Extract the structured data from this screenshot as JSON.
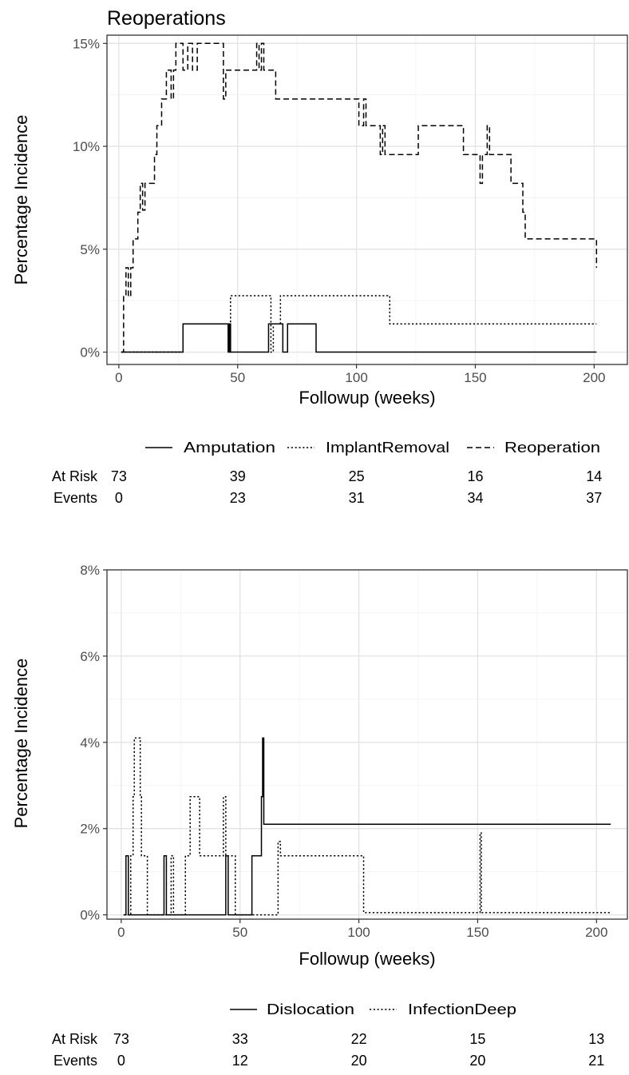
{
  "chart_data": [
    {
      "type": "line",
      "step": true,
      "title": "Reoperations",
      "xlabel": "Followup (weeks)",
      "ylabel": "Percentage Incidence",
      "xlim": [
        -5,
        214
      ],
      "ylim": [
        -0.6,
        15.4
      ],
      "x_ticks": [
        0,
        50,
        100,
        150,
        200
      ],
      "x_tick_labels": [
        "0",
        "50",
        "100",
        "150",
        "200"
      ],
      "y_ticks": [
        0,
        5,
        10,
        15
      ],
      "y_tick_labels": [
        "0%",
        "5%",
        "10%",
        "15%"
      ],
      "grid": true,
      "legend_position": "bottom",
      "series": [
        {
          "name": "Amputation",
          "dash": "solid",
          "points": [
            [
              1,
              0
            ],
            [
              27,
              0
            ],
            [
              27,
              1.37
            ],
            [
              46,
              1.37
            ],
            [
              46,
              0
            ],
            [
              46.5,
              0
            ],
            [
              46.5,
              1.37
            ],
            [
              47,
              1.37
            ],
            [
              47,
              0
            ],
            [
              63,
              0
            ],
            [
              63,
              1.37
            ],
            [
              69,
              1.37
            ],
            [
              69,
              0
            ],
            [
              71,
              0
            ],
            [
              71,
              1.37
            ],
            [
              83,
              1.37
            ],
            [
              83,
              0
            ],
            [
              201,
              0
            ]
          ]
        },
        {
          "name": "ImplantRemoval",
          "dash": "dotted",
          "points": [
            [
              1,
              0
            ],
            [
              27,
              0
            ],
            [
              27,
              1.37
            ],
            [
              46,
              1.37
            ],
            [
              46,
              0
            ],
            [
              47,
              0
            ],
            [
              47,
              2.74
            ],
            [
              64,
              2.74
            ],
            [
              64,
              0
            ],
            [
              65,
              0
            ],
            [
              65,
              1.37
            ],
            [
              68,
              1.37
            ],
            [
              68,
              2.74
            ],
            [
              114,
              2.74
            ],
            [
              114,
              1.37
            ],
            [
              201,
              1.37
            ]
          ]
        },
        {
          "name": "Reoperation",
          "dash": "dashed",
          "points": [
            [
              1,
              0
            ],
            [
              2,
              0
            ],
            [
              2,
              2.7
            ],
            [
              3,
              2.7
            ],
            [
              3,
              4.1
            ],
            [
              4,
              4.1
            ],
            [
              4,
              2.7
            ],
            [
              5,
              2.7
            ],
            [
              5,
              4.1
            ],
            [
              6,
              4.1
            ],
            [
              6,
              5.5
            ],
            [
              8,
              5.5
            ],
            [
              8,
              6.8
            ],
            [
              9,
              6.8
            ],
            [
              9,
              8.2
            ],
            [
              10,
              8.2
            ],
            [
              10,
              6.9
            ],
            [
              11,
              6.9
            ],
            [
              11,
              8.2
            ],
            [
              15,
              8.2
            ],
            [
              15,
              9.6
            ],
            [
              16,
              9.6
            ],
            [
              16,
              11.0
            ],
            [
              18,
              11.0
            ],
            [
              18,
              12.3
            ],
            [
              20,
              12.3
            ],
            [
              20,
              13.7
            ],
            [
              22,
              13.7
            ],
            [
              22,
              12.3
            ],
            [
              23,
              12.3
            ],
            [
              23,
              13.7
            ],
            [
              24,
              13.7
            ],
            [
              24,
              15.0
            ],
            [
              27,
              15.0
            ],
            [
              27,
              13.7
            ],
            [
              29,
              13.7
            ],
            [
              29,
              15.0
            ],
            [
              31,
              15.0
            ],
            [
              31,
              13.7
            ],
            [
              33,
              13.7
            ],
            [
              33,
              15.0
            ],
            [
              44,
              15.0
            ],
            [
              44,
              12.3
            ],
            [
              45,
              12.3
            ],
            [
              45,
              13.7
            ],
            [
              58,
              13.7
            ],
            [
              58,
              15.0
            ],
            [
              59,
              15.0
            ],
            [
              59,
              13.7
            ],
            [
              60,
              13.7
            ],
            [
              60,
              15.0
            ],
            [
              61,
              15.0
            ],
            [
              61,
              13.7
            ],
            [
              66,
              13.7
            ],
            [
              66,
              12.3
            ],
            [
              101,
              12.3
            ],
            [
              101,
              11.0
            ],
            [
              103,
              11.0
            ],
            [
              103,
              12.3
            ],
            [
              104,
              12.3
            ],
            [
              104,
              11.0
            ],
            [
              110,
              11.0
            ],
            [
              110,
              9.6
            ],
            [
              111,
              9.6
            ],
            [
              111,
              11.0
            ],
            [
              112,
              11.0
            ],
            [
              112,
              9.6
            ],
            [
              126,
              9.6
            ],
            [
              126,
              11.0
            ],
            [
              145,
              11.0
            ],
            [
              145,
              9.6
            ],
            [
              152,
              9.6
            ],
            [
              152,
              8.2
            ],
            [
              153,
              8.2
            ],
            [
              153,
              9.6
            ],
            [
              155,
              9.6
            ],
            [
              155,
              11.0
            ],
            [
              156,
              11.0
            ],
            [
              156,
              9.6
            ],
            [
              165,
              9.6
            ],
            [
              165,
              8.2
            ],
            [
              170,
              8.2
            ],
            [
              170,
              6.8
            ],
            [
              171,
              6.8
            ],
            [
              171,
              5.5
            ],
            [
              201,
              5.5
            ],
            [
              201,
              4.1
            ]
          ]
        }
      ],
      "risk_table": {
        "row_labels": [
          "At Risk",
          "Events"
        ],
        "x": [
          0,
          50,
          100,
          150,
          200
        ],
        "at_risk": [
          "73",
          "39",
          "25",
          "16",
          "14"
        ],
        "events": [
          "0",
          "23",
          "31",
          "34",
          "37"
        ]
      }
    },
    {
      "type": "line",
      "step": true,
      "title": "",
      "xlabel": "Followup (weeks)",
      "ylabel": "Percentage Incidence",
      "xlim": [
        -6,
        213
      ],
      "ylim": [
        -0.1,
        8.0
      ],
      "x_ticks": [
        0,
        50,
        100,
        150,
        200
      ],
      "x_tick_labels": [
        "0",
        "50",
        "100",
        "150",
        "200"
      ],
      "y_ticks": [
        0,
        2,
        4,
        6,
        8
      ],
      "y_tick_labels": [
        "0%",
        "2%",
        "4%",
        "6%",
        "8%"
      ],
      "grid": true,
      "legend_position": "bottom",
      "series": [
        {
          "name": "Dislocation",
          "dash": "solid",
          "points": [
            [
              1,
              0
            ],
            [
              2,
              0
            ],
            [
              2,
              1.37
            ],
            [
              3,
              1.37
            ],
            [
              3,
              0
            ],
            [
              18,
              0
            ],
            [
              18,
              1.37
            ],
            [
              19,
              1.37
            ],
            [
              19,
              0
            ],
            [
              44,
              0
            ],
            [
              44,
              1.37
            ],
            [
              45,
              1.37
            ],
            [
              45,
              0
            ],
            [
              55,
              0
            ],
            [
              55,
              1.37
            ],
            [
              59,
              1.37
            ],
            [
              59,
              2.74
            ],
            [
              59.5,
              2.74
            ],
            [
              59.5,
              4.1
            ],
            [
              60,
              4.1
            ],
            [
              60,
              2.1
            ],
            [
              206,
              2.1
            ]
          ]
        },
        {
          "name": "InfectionDeep",
          "dash": "dotted",
          "points": [
            [
              1,
              0
            ],
            [
              4,
              0
            ],
            [
              4,
              1.37
            ],
            [
              5,
              1.37
            ],
            [
              5,
              2.74
            ],
            [
              5.5,
              2.74
            ],
            [
              5.5,
              4.1
            ],
            [
              8,
              4.1
            ],
            [
              8,
              2.74
            ],
            [
              8.5,
              2.74
            ],
            [
              8.5,
              1.37
            ],
            [
              11,
              1.37
            ],
            [
              11,
              0
            ],
            [
              21,
              0
            ],
            [
              21,
              1.37
            ],
            [
              22,
              1.37
            ],
            [
              22,
              0
            ],
            [
              27,
              0
            ],
            [
              27,
              1.37
            ],
            [
              29,
              1.37
            ],
            [
              29,
              2.74
            ],
            [
              33,
              2.74
            ],
            [
              33,
              1.37
            ],
            [
              43,
              1.37
            ],
            [
              43,
              2.74
            ],
            [
              44,
              2.74
            ],
            [
              44,
              1.37
            ],
            [
              48,
              1.37
            ],
            [
              48,
              0
            ],
            [
              66,
              0
            ],
            [
              66,
              1.7
            ],
            [
              67,
              1.7
            ],
            [
              67,
              1.37
            ],
            [
              102,
              1.37
            ],
            [
              102,
              0.05
            ],
            [
              151,
              0.05
            ],
            [
              151,
              1.9
            ],
            [
              151.5,
              1.9
            ],
            [
              151.5,
              0.05
            ],
            [
              206,
              0.05
            ]
          ]
        }
      ],
      "risk_table": {
        "row_labels": [
          "At Risk",
          "Events"
        ],
        "x": [
          0,
          50,
          100,
          150,
          200
        ],
        "at_risk": [
          "73",
          "33",
          "22",
          "15",
          "13"
        ],
        "events": [
          "0",
          "12",
          "20",
          "20",
          "21"
        ]
      }
    }
  ]
}
